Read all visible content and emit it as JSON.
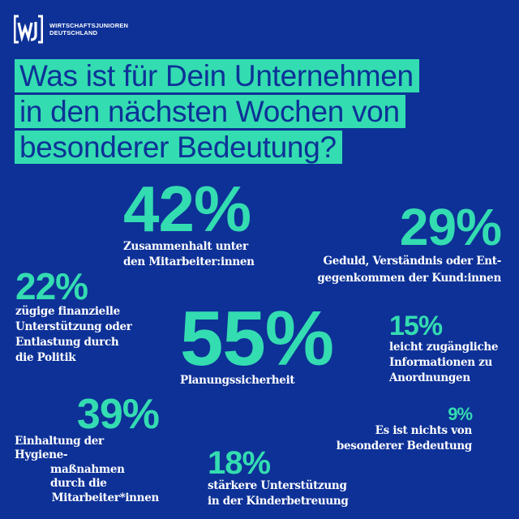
{
  "logo": {
    "mark": "[wj]",
    "line1": "WIRTSCHAFTSJUNIOREN",
    "line2": "DEUTSCHLAND"
  },
  "title": {
    "lines": [
      "Was ist für Dein Unternehmen",
      "in den nächsten Wochen von",
      "besonderer Bedeutung?"
    ]
  },
  "colors": {
    "background": "#0d3197",
    "accent": "#34dcb1",
    "text": "#ffffff"
  },
  "stats": {
    "zusammenhalt": {
      "value": "42%",
      "label_lines": [
        "Zusammenhalt unter",
        "den Mitarbeiter:innen"
      ]
    },
    "geduld": {
      "value": "29%",
      "label_lines": [
        "Geduld, Verständnis oder Ent-",
        "gegenkommen der Kund:innen"
      ]
    },
    "politik": {
      "value": "22%",
      "label_lines": [
        "zügige finanzielle",
        "Unterstützung oder",
        "Entlastung durch",
        "die Politik"
      ]
    },
    "planung": {
      "value": "55%",
      "label_lines": [
        "Planungssicherheit"
      ]
    },
    "informationen": {
      "value": "15%",
      "label_lines": [
        "leicht zugängliche",
        "Informationen zu",
        "Anordnungen"
      ]
    },
    "hygiene": {
      "value": "39%",
      "label_lines": [
        "Einhaltung der Hygiene-",
        "maßnahmen durch die",
        "Mitarbeiter*innen"
      ]
    },
    "nichts": {
      "value": "9%",
      "label_lines": [
        "Es ist nichts von",
        "besonderer Bedeutung"
      ]
    },
    "kinder": {
      "value": "18%",
      "label_lines": [
        "stärkere Unterstützung",
        "in der Kinderbetreuung"
      ]
    }
  }
}
